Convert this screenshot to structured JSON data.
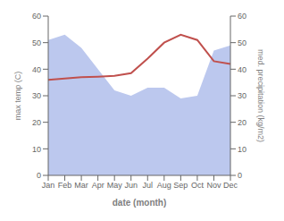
{
  "chart_data": {
    "type": "line",
    "xlabel": "date (month)",
    "ylabel": "max temp (C)",
    "y2label": "med. precipitation (kg/m2)",
    "categories": [
      "Jan",
      "Feb",
      "Mar",
      "Apr",
      "May",
      "Jun",
      "Jul",
      "Aug",
      "Sep",
      "Oct",
      "Nov",
      "Dec"
    ],
    "ylim": [
      0,
      60
    ],
    "yticks": [
      0,
      10,
      20,
      30,
      40,
      50,
      60
    ],
    "y2lim": [
      0,
      60
    ],
    "y2ticks": [
      0,
      10,
      20,
      30,
      40,
      50,
      60
    ],
    "grid": false,
    "series": [
      {
        "type": "area",
        "axis": "y2",
        "color": "#bcc8ee",
        "values": [
          51,
          53,
          48,
          40,
          32,
          30,
          33,
          33,
          29,
          30,
          47,
          49
        ]
      },
      {
        "type": "line",
        "color": "#c0504d",
        "values": [
          36,
          36.5,
          37,
          37.2,
          37.5,
          38.5,
          44,
          50,
          53,
          51,
          43,
          42
        ]
      }
    ]
  }
}
